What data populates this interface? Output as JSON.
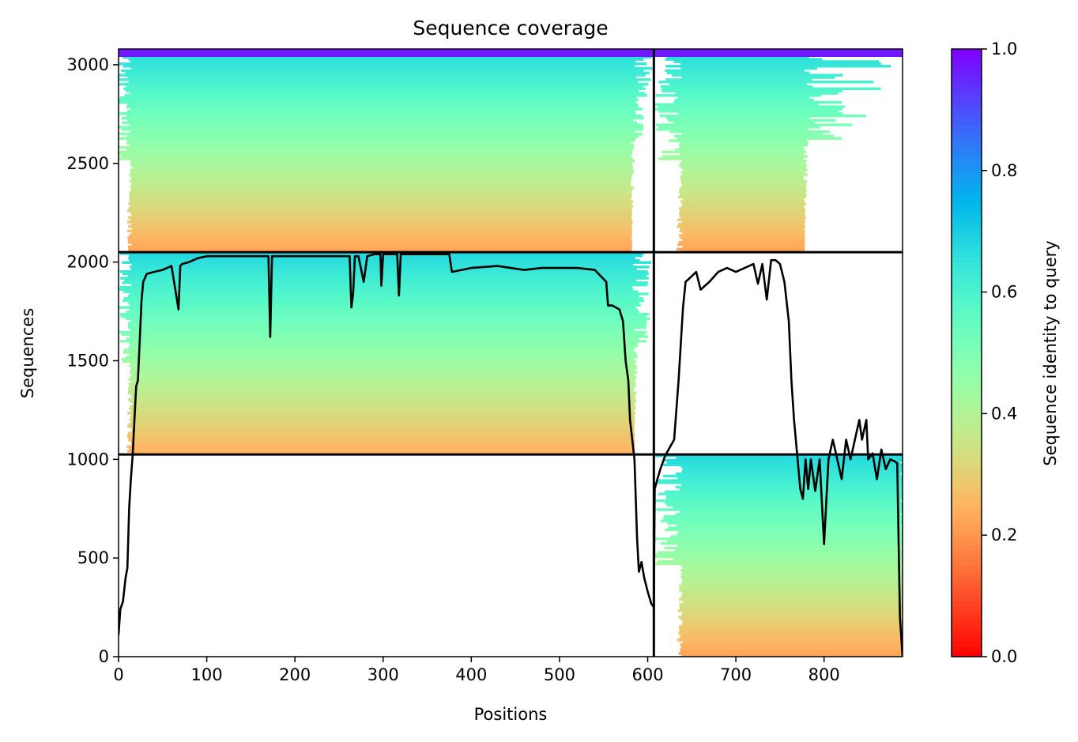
{
  "chart_data": {
    "type": "heatmap",
    "title": "Sequence coverage",
    "xlabel": "Positions",
    "ylabel": "Sequences",
    "xlim": [
      0,
      889
    ],
    "ylim": [
      0,
      3080
    ],
    "x_ticks": [
      0,
      100,
      200,
      300,
      400,
      500,
      600,
      700,
      800
    ],
    "y_ticks": [
      0,
      500,
      1000,
      1500,
      2000,
      2500,
      3000
    ],
    "x_tick_labels": [
      "0",
      "100",
      "200",
      "300",
      "400",
      "500",
      "600",
      "700",
      "800"
    ],
    "y_tick_labels": [
      "0",
      "500",
      "1000",
      "1500",
      "2000",
      "2500",
      "3000"
    ],
    "chain_boundary_x": 607,
    "group_boundaries_y": [
      1025,
      2050
    ],
    "colorbar": {
      "label": "Sequence identity to query",
      "range": [
        0.0,
        1.0
      ],
      "ticks": [
        0.0,
        0.2,
        0.4,
        0.6,
        0.8,
        1.0
      ],
      "tick_labels": [
        "0.0",
        "0.2",
        "0.4",
        "0.6",
        "0.8",
        "1.0"
      ],
      "colormap": "rainbow_r",
      "colors": [
        "#ff0000",
        "#ff9148",
        "#b4f27a",
        "#00b4ee",
        "#8000ff"
      ]
    },
    "blocks": [
      {
        "x0": 0,
        "x1": 607,
        "y0": 2050,
        "y1": 3080,
        "identity_bottom": 0.22,
        "identity_top": 0.68,
        "cover_start": 16,
        "cover_end": 582
      },
      {
        "x0": 607,
        "x1": 889,
        "y0": 2050,
        "y1": 3080,
        "identity_bottom": 0.22,
        "identity_top": 0.68,
        "cover_start": 640,
        "cover_end": 778
      },
      {
        "x0": 0,
        "x1": 607,
        "y0": 1025,
        "y1": 2050,
        "identity_bottom": 0.24,
        "identity_top": 0.68,
        "cover_start": 16,
        "cover_end": 585
      },
      {
        "x0": 607,
        "x1": 889,
        "y0": 0,
        "y1": 1025,
        "identity_bottom": 0.22,
        "identity_top": 0.68,
        "cover_start": 640,
        "cover_end": 889
      }
    ],
    "coverage_line": {
      "x": [
        0,
        2,
        5,
        8,
        10,
        12,
        14,
        16,
        18,
        20,
        22,
        24,
        26,
        28,
        32,
        40,
        50,
        60,
        68,
        70,
        72,
        80,
        90,
        100,
        120,
        150,
        170,
        172,
        174,
        178,
        200,
        230,
        262,
        264,
        266,
        268,
        272,
        278,
        282,
        290,
        297,
        298,
        300,
        310,
        316,
        318,
        320,
        322,
        330,
        350,
        375,
        378,
        400,
        430,
        460,
        480,
        500,
        520,
        540,
        553,
        555,
        560,
        568,
        572,
        575,
        578,
        580,
        585,
        588,
        590,
        593,
        596,
        600,
        604,
        607,
        608,
        611,
        615,
        620,
        630,
        635,
        640,
        643,
        648,
        655,
        660,
        670,
        680,
        690,
        700,
        710,
        720,
        725,
        730,
        735,
        740,
        745,
        750,
        755,
        760,
        763,
        766,
        770,
        773,
        776,
        779,
        782,
        785,
        790,
        795,
        800,
        805,
        810,
        815,
        820,
        825,
        830,
        840,
        843,
        848,
        850,
        855,
        860,
        865,
        870,
        875,
        880,
        883,
        886,
        889
      ],
      "y": [
        110,
        240,
        280,
        400,
        450,
        750,
        900,
        1025,
        1200,
        1370,
        1400,
        1600,
        1800,
        1900,
        1940,
        1950,
        1960,
        1980,
        1760,
        1980,
        1990,
        2000,
        2020,
        2030,
        2030,
        2030,
        2030,
        1620,
        2030,
        2030,
        2030,
        2030,
        2030,
        1770,
        1840,
        2030,
        2030,
        1900,
        2030,
        2040,
        2040,
        1880,
        2040,
        2040,
        2040,
        1830,
        2040,
        2040,
        2040,
        2040,
        2040,
        1950,
        1970,
        1980,
        1960,
        1970,
        1970,
        1970,
        1960,
        1900,
        1780,
        1780,
        1760,
        1700,
        1500,
        1400,
        1200,
        1000,
        600,
        430,
        480,
        400,
        330,
        270,
        250,
        850,
        900,
        960,
        1020,
        1100,
        1400,
        1770,
        1900,
        1920,
        1950,
        1860,
        1900,
        1950,
        1970,
        1950,
        1970,
        1990,
        1890,
        1990,
        1810,
        2010,
        2010,
        1990,
        1900,
        1700,
        1400,
        1200,
        1000,
        850,
        800,
        1000,
        850,
        1000,
        840,
        1000,
        570,
        1000,
        1100,
        1000,
        900,
        1100,
        1000,
        1200,
        1100,
        1200,
        1000,
        1030,
        900,
        1050,
        950,
        1000,
        990,
        980,
        200,
        0
      ]
    }
  }
}
